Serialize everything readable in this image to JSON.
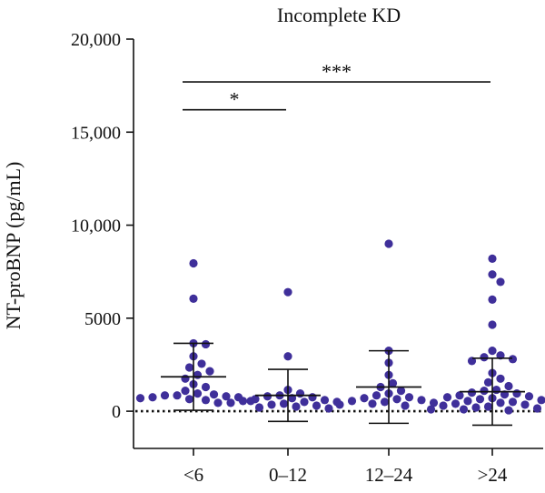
{
  "chart_data": {
    "type": "scatter",
    "title": "Incomplete KD",
    "xlabel": "",
    "ylabel": "NT-proBNP (pg/mL)",
    "ylim": [
      -2000,
      20000
    ],
    "yticks": [
      0,
      5000,
      10000,
      15000,
      20000
    ],
    "ytick_labels": [
      "0",
      "5000",
      "10,000",
      "15,000",
      "20,000"
    ],
    "categories": [
      "<6",
      "0–12",
      "12–24",
      ">24"
    ],
    "point_color": "#3f2f9a",
    "errorbar_color": "#111111",
    "groups": [
      {
        "label": "<6",
        "mean": 1850,
        "sd_upper": 3650,
        "sd_lower": 50,
        "points": [
          7950,
          6050,
          3650,
          3600,
          2950,
          2550,
          2350,
          2150,
          1950,
          1750,
          1450,
          1300,
          1100,
          950,
          900,
          850,
          850,
          800,
          750,
          750,
          700,
          650,
          600,
          550,
          450
        ]
      },
      {
        "label": "0–12",
        "mean": 850,
        "sd_upper": 2250,
        "sd_lower": -550,
        "points": [
          6400,
          2950,
          1150,
          950,
          850,
          800,
          750,
          700,
          650,
          600,
          550,
          500,
          500,
          450,
          400,
          350,
          300,
          250,
          200,
          150
        ]
      },
      {
        "label": "12–24",
        "mean": 1300,
        "sd_upper": 3250,
        "sd_lower": -650,
        "points": [
          9000,
          3250,
          2600,
          1950,
          1500,
          1300,
          1100,
          950,
          850,
          750,
          700,
          650,
          600,
          550,
          500,
          450,
          400,
          350,
          300
        ]
      },
      {
        "label": ">24",
        "mean": 1050,
        "sd_upper": 2850,
        "sd_lower": -750,
        "points": [
          8200,
          7350,
          6950,
          6000,
          4650,
          3250,
          3000,
          2900,
          2800,
          2700,
          2050,
          1750,
          1550,
          1350,
          1150,
          1100,
          1000,
          950,
          900,
          850,
          800,
          750,
          700,
          650,
          600,
          550,
          500,
          450,
          400,
          350,
          300,
          250,
          200,
          150,
          150,
          100,
          100,
          50
        ]
      }
    ],
    "significance": [
      {
        "from": "<6",
        "to": "0–12",
        "y": 16200,
        "label": "*"
      },
      {
        "from": "<6",
        "to": ">24",
        "y": 17700,
        "label": "***"
      }
    ],
    "reference_line": {
      "y": 0,
      "style": "dotted"
    }
  }
}
